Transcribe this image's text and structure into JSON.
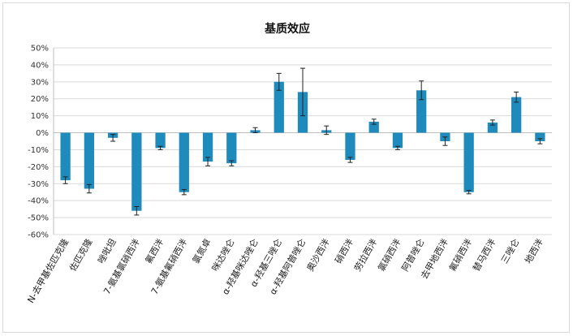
{
  "chart_data": {
    "type": "bar",
    "title": "基质效应",
    "xlabel": "",
    "ylabel": "",
    "ylim": [
      -60,
      50
    ],
    "yticks": [
      50,
      40,
      30,
      20,
      10,
      0,
      -10,
      -20,
      -30,
      -40,
      -50,
      -60
    ],
    "ytick_labels": [
      "50%",
      "40%",
      "30%",
      "20%",
      "10%",
      "0%",
      "-10%",
      "-20%",
      "-30%",
      "-40%",
      "-50%",
      "-60%"
    ],
    "grid": true,
    "legend": "none",
    "bar_color": "#1f8bbd",
    "categories": [
      "N-去甲基佐匹克隆",
      "佐匹克隆",
      "唑吡坦",
      "7-氨基氯硝西泮",
      "氟西泮",
      "7-氨基氟硝西泮",
      "氯氮卓",
      "咪达唑仑",
      "α-羟基咪达唑仑",
      "α-羟基三唑仑",
      "α-羟基阿普唑仑",
      "奥沙西泮",
      "硝西泮",
      "劳拉西泮",
      "氯硝西泮",
      "阿普唑仑",
      "去甲地西泮",
      "氟硝西泮",
      "替马西泮",
      "三唑仑",
      "地西泮"
    ],
    "values": [
      -28,
      -33,
      -3,
      -46,
      -9,
      -35,
      -17,
      -18,
      1.5,
      30,
      24,
      1.5,
      -16,
      6.5,
      -9,
      25,
      -5,
      -35,
      6,
      21,
      -5
    ],
    "errors": [
      2,
      2.5,
      2,
      2.5,
      1,
      1.5,
      2.5,
      1.5,
      1.5,
      5,
      14,
      2.5,
      1.5,
      1.5,
      1,
      5.5,
      2.5,
      1,
      1.5,
      3,
      1.5
    ]
  }
}
